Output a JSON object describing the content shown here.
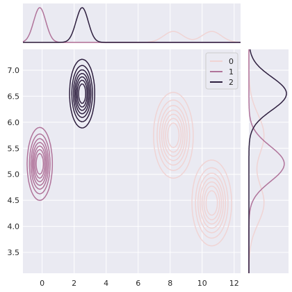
{
  "chart_data": {
    "type": "jointplot-kde",
    "title": "",
    "xlabel": "",
    "ylabel": "",
    "xlim": [
      -1.2,
      12.4
    ],
    "ylim": [
      3.1,
      7.4
    ],
    "x_ticks": [
      0,
      2,
      4,
      6,
      8,
      10,
      12
    ],
    "y_ticks": [
      3.5,
      4.0,
      4.5,
      5.0,
      5.5,
      6.0,
      6.5,
      7.0
    ],
    "grid": true,
    "legend_position": "top-right",
    "legend_labels": [
      "0",
      "1",
      "2"
    ],
    "series": [
      {
        "name": "0",
        "color": "#f0d4d4",
        "line_width": 1.5,
        "clusters": [
          {
            "center": [
              8.2,
              5.75
            ],
            "sd": [
              0.6,
              0.4
            ],
            "weight": 0.5
          },
          {
            "center": [
              10.6,
              4.45
            ],
            "sd": [
              0.6,
              0.4
            ],
            "weight": 0.5
          }
        ]
      },
      {
        "name": "1",
        "color": "#b0739a",
        "line_width": 1.5,
        "clusters": [
          {
            "center": [
              -0.15,
              5.2
            ],
            "sd": [
              0.38,
              0.34
            ],
            "weight": 1.0
          }
        ]
      },
      {
        "name": "2",
        "color": "#2d1e3e",
        "line_width": 1.5,
        "clusters": [
          {
            "center": [
              2.5,
              6.55
            ],
            "sd": [
              0.38,
              0.32
            ],
            "weight": 1.0
          }
        ]
      }
    ]
  }
}
